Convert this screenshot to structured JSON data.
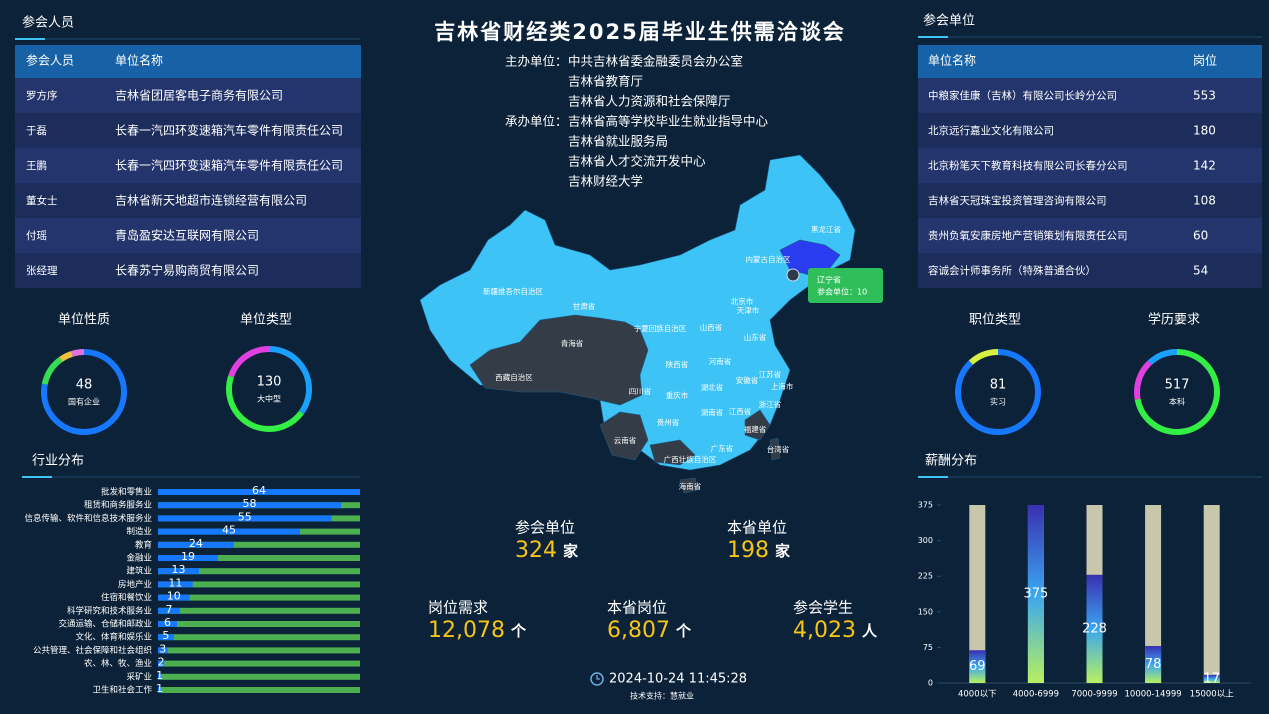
{
  "header": {
    "title": "吉林省财经类2025届毕业生供需洽谈会",
    "host_label": "主办单位：",
    "hosts": [
      "中共吉林省委金融委员会办公室",
      "吉林省教育厅",
      "吉林省人力资源和社会保障厅"
    ],
    "organizer_label": "承办单位：",
    "organizers": [
      "吉林省高等学校毕业生就业指导中心",
      "吉林省就业服务局",
      "吉林省人才交流开发中心",
      "吉林财经大学"
    ]
  },
  "attendees": {
    "title": "参会人员",
    "columns": [
      "参会人员",
      "单位名称"
    ],
    "rows": [
      [
        "罗方序",
        "吉林省团居客电子商务有限公司"
      ],
      [
        "于磊",
        "长春一汽四环变速箱汽车零件有限责任公司"
      ],
      [
        "王鹏",
        "长春一汽四环变速箱汽车零件有限责任公司"
      ],
      [
        "董女士",
        "吉林省新天地超市连锁经营有限公司"
      ],
      [
        "付瑶",
        "青岛盈安达互联网有限公司"
      ],
      [
        "张经理",
        "长春苏宁易购商贸有限公司"
      ]
    ]
  },
  "companies": {
    "title": "参会单位",
    "columns": [
      "单位名称",
      "岗位"
    ],
    "rows": [
      [
        "中粮家佳康（吉林）有限公司长岭分公司",
        "553"
      ],
      [
        "北京远行嘉业文化有限公司",
        "180"
      ],
      [
        "北京粉笔天下教育科技有限公司长春分公司",
        "142"
      ],
      [
        "吉林省天冠珠宝投资管理咨询有限公司",
        "108"
      ],
      [
        "贵州负氧安康房地产营销策划有限责任公司",
        "60"
      ],
      [
        "容诚会计师事务所（特殊普通合伙）",
        "54"
      ]
    ]
  },
  "gauges": [
    {
      "title": "单位性质",
      "value": "48",
      "label": "国有企业"
    },
    {
      "title": "单位类型",
      "value": "130",
      "label": "大中型"
    },
    {
      "title": "职位类型",
      "value": "81",
      "label": "实习"
    },
    {
      "title": "学历要求",
      "value": "517",
      "label": "本科"
    }
  ],
  "stats": [
    {
      "label": "参会单位",
      "value": "324",
      "unit": "家"
    },
    {
      "label": "本省单位",
      "value": "198",
      "unit": "家"
    },
    {
      "label": "岗位需求",
      "value": "12,078",
      "unit": "个"
    },
    {
      "label": "本省岗位",
      "value": "6,807",
      "unit": "个"
    },
    {
      "label": "参会学生",
      "value": "4,023",
      "unit": "人"
    }
  ],
  "map": {
    "labels": [
      "黑龙江省",
      "内蒙古自治区",
      "新疆维吾尔自治区",
      "甘肃省",
      "青海省",
      "西藏自治区",
      "宁夏回族自治区",
      "山西省",
      "北京市",
      "天津市",
      "山东省",
      "陕西省",
      "河南省",
      "四川省",
      "湖北省",
      "安徽省",
      "江苏省",
      "上海市",
      "重庆市",
      "浙江省",
      "湖南省",
      "贵州省",
      "江西省",
      "福建省",
      "云南省",
      "广西壮族自治区",
      "广东省",
      "台湾省",
      "海南省"
    ],
    "tooltip": {
      "title": "辽宁省",
      "text": "参会单位：10"
    }
  },
  "footer": {
    "time": "2024-10-24 11:45:28",
    "support": "技术支持：慧就业"
  },
  "chart_data": [
    {
      "type": "hbar",
      "title": "行业分布",
      "categories": [
        "批发和零售业",
        "租赁和商务服务业",
        "信息传输、软件和信息技术服务业",
        "制造业",
        "教育",
        "金融业",
        "建筑业",
        "房地产业",
        "住宿和餐饮业",
        "科学研究和技术服务业",
        "交通运输、仓储和邮政业",
        "文化、体育和娱乐业",
        "公共管理、社会保障和社会组织",
        "农、林、牧、渔业",
        "采矿业",
        "卫生和社会工作"
      ],
      "values": [
        64,
        58,
        55,
        45,
        24,
        19,
        13,
        11,
        10,
        7,
        6,
        5,
        3,
        2,
        1,
        1
      ],
      "color": "#1677ff"
    },
    {
      "type": "bar",
      "title": "薪酬分布",
      "categories": [
        "4000以下",
        "4000-6999",
        "7000-9999",
        "10000-14999",
        "15000以上"
      ],
      "values": [
        69,
        375,
        228,
        78,
        17
      ],
      "ylim": [
        0,
        375
      ],
      "yticks": [
        0,
        75,
        150,
        225,
        300,
        375
      ]
    }
  ]
}
